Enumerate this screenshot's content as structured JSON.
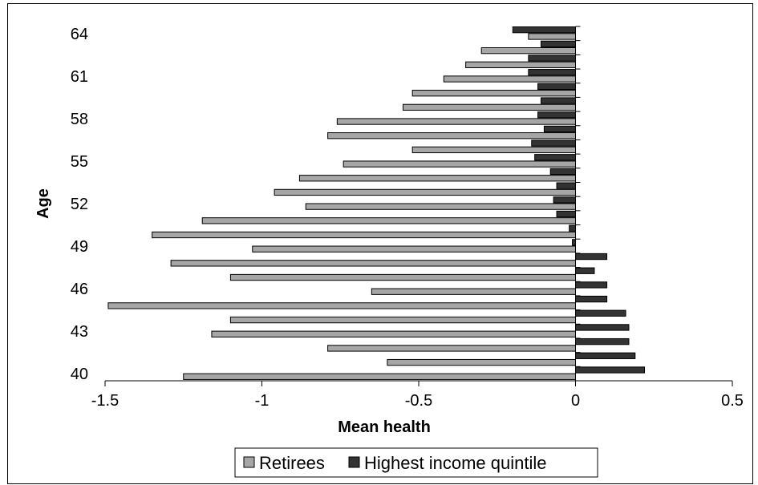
{
  "chart_data": {
    "type": "bar",
    "orientation": "horizontal",
    "categories": [
      40,
      41,
      42,
      43,
      44,
      45,
      46,
      47,
      48,
      49,
      50,
      51,
      52,
      53,
      54,
      55,
      56,
      57,
      58,
      59,
      60,
      61,
      62,
      63,
      64
    ],
    "y_tick_labels": [
      "40",
      "43",
      "46",
      "49",
      "52",
      "55",
      "58",
      "61",
      "64"
    ],
    "x_tick_labels": [
      "-1.5",
      "-1",
      "-0.5",
      "0",
      "0.5"
    ],
    "xlim": [
      -1.5,
      0.5
    ],
    "xlabel": "Mean health",
    "ylabel": "Age",
    "legend_position": "bottom",
    "grid": false,
    "series": [
      {
        "name": "Retirees",
        "color": "#a6a6a6",
        "values": [
          -1.25,
          -0.6,
          -0.79,
          -1.16,
          -1.1,
          -1.49,
          -0.65,
          -1.1,
          -1.29,
          -1.03,
          -1.35,
          -1.19,
          -0.86,
          -0.96,
          -0.88,
          -0.74,
          -0.52,
          -0.79,
          -0.76,
          -0.55,
          -0.52,
          -0.42,
          -0.35,
          -0.3,
          -0.15
        ]
      },
      {
        "name": "Highest income quintile",
        "color": "#333333",
        "values": [
          0.22,
          0.19,
          0.17,
          0.17,
          0.16,
          0.1,
          0.1,
          0.06,
          0.1,
          -0.01,
          -0.02,
          -0.06,
          -0.07,
          -0.06,
          -0.08,
          -0.13,
          -0.14,
          -0.1,
          -0.12,
          -0.11,
          -0.12,
          -0.15,
          -0.15,
          -0.11,
          -0.2
        ]
      }
    ]
  }
}
